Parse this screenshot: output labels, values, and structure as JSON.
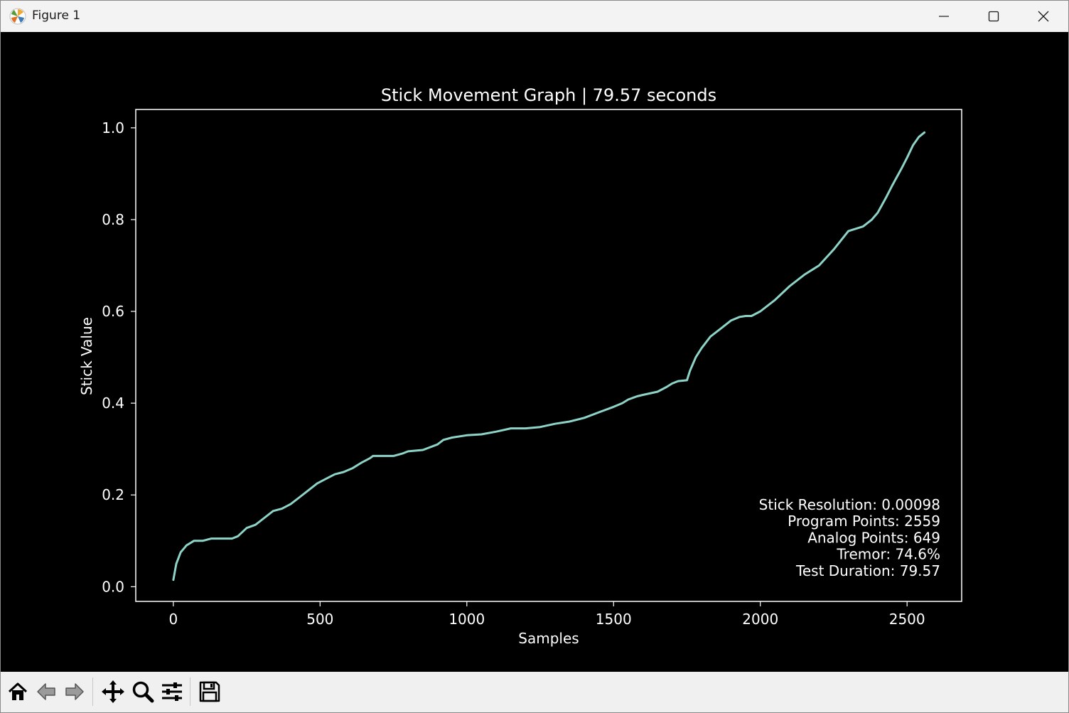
{
  "window": {
    "title": "Figure 1",
    "controls": [
      "minimize-icon",
      "maximize-icon",
      "close-icon"
    ]
  },
  "toolbar": {
    "tools": [
      "home-icon",
      "back-arrow-icon",
      "forward-arrow-icon",
      "pan-icon",
      "zoom-icon",
      "configure-subplots-icon",
      "save-icon"
    ]
  },
  "colors": {
    "background": "#000000",
    "line": "#8dd3c7",
    "text": "#ffffff"
  },
  "chart_data": {
    "type": "line",
    "title": "Stick Movement Graph | 79.57 seconds",
    "xlabel": "Samples",
    "ylabel": "Stick Value",
    "xlim": [
      -128,
      2686
    ],
    "ylim": [
      -0.032,
      1.04
    ],
    "xticks": [
      0,
      500,
      1000,
      1500,
      2000,
      2500
    ],
    "xtick_labels": [
      "0",
      "500",
      "1000",
      "1500",
      "2000",
      "2500"
    ],
    "yticks": [
      0.0,
      0.2,
      0.4,
      0.6,
      0.8,
      1.0
    ],
    "ytick_labels": [
      "0.0",
      "0.2",
      "0.4",
      "0.6",
      "0.8",
      "1.0"
    ],
    "grid": false,
    "series": [
      {
        "x": [
          0,
          10,
          25,
          45,
          70,
          100,
          130,
          160,
          200,
          220,
          250,
          280,
          310,
          340,
          370,
          400,
          430,
          460,
          490,
          520,
          550,
          580,
          610,
          640,
          670,
          680,
          700,
          750,
          780,
          800,
          850,
          900,
          920,
          950,
          1000,
          1050,
          1100,
          1150,
          1200,
          1250,
          1300,
          1350,
          1400,
          1450,
          1500,
          1530,
          1550,
          1580,
          1600,
          1650,
          1680,
          1700,
          1720,
          1750,
          1760,
          1780,
          1800,
          1830,
          1860,
          1900,
          1930,
          1950,
          1970,
          2000,
          2050,
          2100,
          2150,
          2200,
          2250,
          2300,
          2350,
          2380,
          2400,
          2430,
          2450,
          2480,
          2500,
          2520,
          2540,
          2559
        ],
        "y": [
          0.015,
          0.05,
          0.075,
          0.09,
          0.1,
          0.1,
          0.105,
          0.105,
          0.105,
          0.11,
          0.128,
          0.135,
          0.15,
          0.165,
          0.17,
          0.18,
          0.195,
          0.21,
          0.225,
          0.235,
          0.245,
          0.25,
          0.258,
          0.27,
          0.28,
          0.285,
          0.285,
          0.285,
          0.29,
          0.295,
          0.298,
          0.31,
          0.32,
          0.325,
          0.33,
          0.332,
          0.338,
          0.345,
          0.345,
          0.348,
          0.355,
          0.36,
          0.368,
          0.38,
          0.392,
          0.4,
          0.408,
          0.415,
          0.418,
          0.425,
          0.435,
          0.443,
          0.448,
          0.45,
          0.47,
          0.5,
          0.52,
          0.545,
          0.56,
          0.58,
          0.588,
          0.59,
          0.59,
          0.6,
          0.625,
          0.655,
          0.68,
          0.7,
          0.735,
          0.775,
          0.785,
          0.8,
          0.815,
          0.85,
          0.875,
          0.91,
          0.935,
          0.962,
          0.98,
          0.99
        ]
      }
    ],
    "annotation": [
      "Stick Resolution: 0.00098",
      "Program Points: 2559",
      "Analog Points: 649",
      "Tremor: 74.6%",
      "Test Duration: 79.57"
    ],
    "annotation_placement": "bottom-right"
  }
}
